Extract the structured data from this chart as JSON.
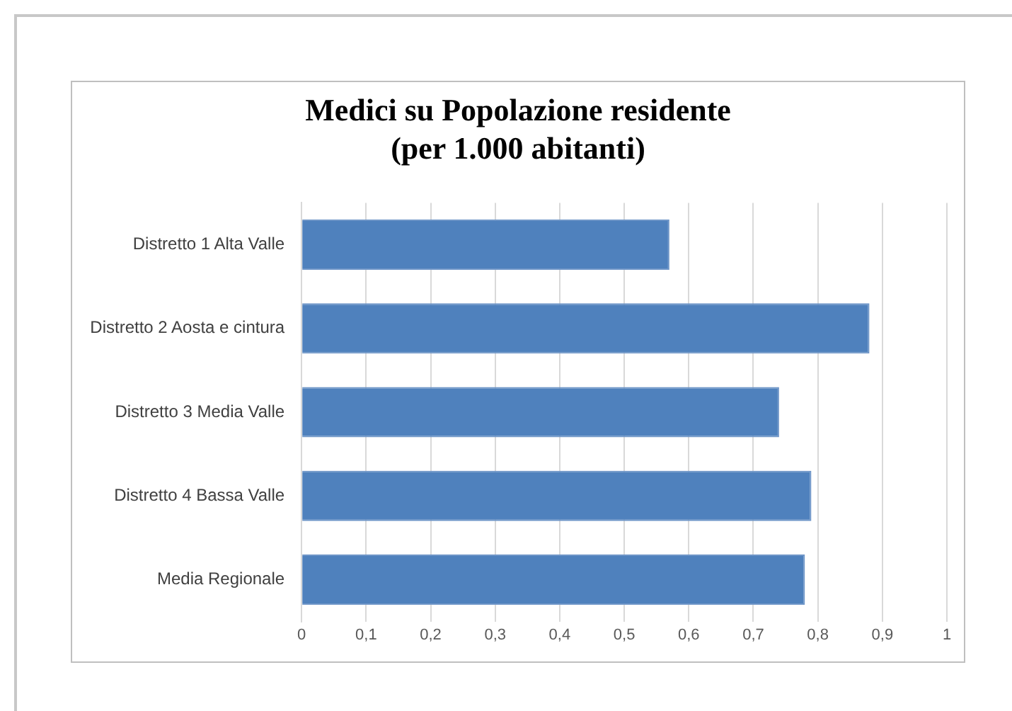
{
  "chart_data": {
    "type": "bar",
    "orientation": "horizontal",
    "title": "Medici su Popolazione residente",
    "subtitle": "(per 1.000 abitanti)",
    "categories": [
      "Distretto 1 Alta Valle",
      "Distretto 2 Aosta e cintura",
      "Distretto 3 Media Valle",
      "Distretto 4 Bassa Valle",
      "Media Regionale"
    ],
    "values": [
      0.57,
      0.88,
      0.74,
      0.79,
      0.78
    ],
    "color": "#4f81bd",
    "xlim": [
      0,
      1
    ],
    "xticks": [
      0,
      {
        "value": 0.1,
        "label": "0,1"
      },
      {
        "value": 0.2,
        "label": "0,2"
      },
      {
        "value": 0.3,
        "label": "0,3"
      },
      {
        "value": 0.4,
        "label": "0,4"
      },
      {
        "value": 0.5,
        "label": "0,5"
      },
      {
        "value": 0.6,
        "label": "0,6"
      },
      {
        "value": 0.7,
        "label": "0,7"
      },
      {
        "value": 0.8,
        "label": "0,8"
      },
      {
        "value": 0.9,
        "label": "0,9"
      },
      1
    ],
    "grid": "x",
    "legend": false
  }
}
